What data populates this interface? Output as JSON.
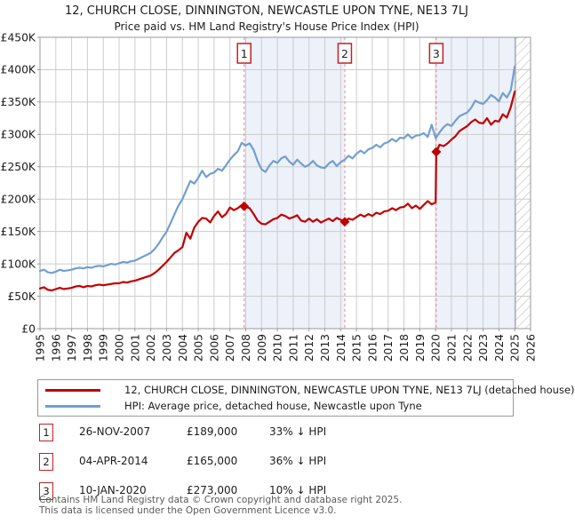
{
  "title": "12, CHURCH CLOSE, DINNINGTON, NEWCASTLE UPON TYNE, NE13 7LJ",
  "subtitle": "Price paid vs. HM Land Registry's House Price Index (HPI)",
  "legend": {
    "items": [
      {
        "label": "12, CHURCH CLOSE, DINNINGTON, NEWCASTLE UPON TYNE, NE13 7LJ (detached house)",
        "color": "#c00000"
      },
      {
        "label": "HPI: Average price, detached house, Newcastle upon Tyne",
        "color": "#719fd0"
      }
    ]
  },
  "table": {
    "rows": [
      {
        "num": "1",
        "date": "26-NOV-2007",
        "price": "£189,000",
        "hpi": "33% ↓ HPI"
      },
      {
        "num": "2",
        "date": "04-APR-2014",
        "price": "£165,000",
        "hpi": "36% ↓ HPI"
      },
      {
        "num": "3",
        "date": "10-JAN-2020",
        "price": "£273,000",
        "hpi": "10% ↓ HPI"
      }
    ]
  },
  "footer": {
    "line1": "Contains HM Land Registry data © Crown copyright and database right 2025.",
    "line2": "This data is licensed under the Open Government Licence v3.0."
  },
  "chart_data": {
    "type": "line",
    "title": "12, CHURCH CLOSE, DINNINGTON, NEWCASTLE UPON TYNE, NE13 7LJ",
    "unit": "GBP thousands",
    "x_axis": {
      "range": [
        1995,
        2026
      ],
      "ticks": [
        1995,
        1996,
        1997,
        1998,
        1999,
        2000,
        2001,
        2002,
        2003,
        2004,
        2005,
        2006,
        2007,
        2008,
        2009,
        2010,
        2011,
        2012,
        2013,
        2014,
        2015,
        2016,
        2017,
        2018,
        2019,
        2020,
        2021,
        2022,
        2023,
        2024,
        2025,
        2026
      ]
    },
    "y_axis": {
      "range": [
        0,
        450
      ],
      "ticks": [
        {
          "v": 0,
          "label": "£0"
        },
        {
          "v": 50,
          "label": "£50K"
        },
        {
          "v": 100,
          "label": "£100K"
        },
        {
          "v": 150,
          "label": "£150K"
        },
        {
          "v": 200,
          "label": "£200K"
        },
        {
          "v": 250,
          "label": "£250K"
        },
        {
          "v": 300,
          "label": "£300K"
        },
        {
          "v": 350,
          "label": "£350K"
        },
        {
          "v": 400,
          "label": "£400K"
        },
        {
          "v": 450,
          "label": "£450K"
        }
      ]
    },
    "colors": {
      "price_line": "#c00000",
      "hpi_line": "#719fd0",
      "band": "#edf1fa",
      "sale_dash": "#ef8b8b",
      "flag_border": "#c32222",
      "grid": "#cccccc",
      "border": "#999999",
      "hatch_line": "#b9b9b9"
    },
    "shaded_periods": [
      [
        2007.9,
        2014.26
      ],
      [
        2020.04,
        2025.03
      ]
    ],
    "hatch_period": [
      2025.03,
      2026
    ],
    "sales": [
      {
        "n": "1",
        "x": 2007.9,
        "y": 189,
        "date": "26-NOV-2007",
        "price": 189000
      },
      {
        "n": "2",
        "x": 2014.26,
        "y": 165,
        "date": "04-APR-2014",
        "price": 165000
      },
      {
        "n": "3",
        "x": 2020.04,
        "y": 273,
        "date": "10-JAN-2020",
        "price": 273000
      }
    ],
    "series": [
      {
        "name": "HPI: Average price, detached house, Newcastle upon Tyne",
        "color": "#719fd0",
        "points": [
          [
            1995.0,
            89
          ],
          [
            1995.25,
            91
          ],
          [
            1995.5,
            87
          ],
          [
            1995.75,
            86
          ],
          [
            1996.0,
            88
          ],
          [
            1996.25,
            91
          ],
          [
            1996.5,
            89
          ],
          [
            1996.75,
            90
          ],
          [
            1997.0,
            91
          ],
          [
            1997.25,
            93
          ],
          [
            1997.5,
            94
          ],
          [
            1997.75,
            93
          ],
          [
            1998.0,
            95
          ],
          [
            1998.25,
            94
          ],
          [
            1998.5,
            96
          ],
          [
            1998.75,
            97
          ],
          [
            1999.0,
            96
          ],
          [
            1999.25,
            98
          ],
          [
            1999.5,
            100
          ],
          [
            1999.75,
            99
          ],
          [
            2000.0,
            101
          ],
          [
            2000.25,
            103
          ],
          [
            2000.5,
            102
          ],
          [
            2000.75,
            104
          ],
          [
            2001.0,
            105
          ],
          [
            2001.25,
            108
          ],
          [
            2001.5,
            111
          ],
          [
            2001.75,
            114
          ],
          [
            2002.0,
            117
          ],
          [
            2002.25,
            123
          ],
          [
            2002.5,
            131
          ],
          [
            2002.75,
            141
          ],
          [
            2003.0,
            150
          ],
          [
            2003.25,
            163
          ],
          [
            2003.5,
            177
          ],
          [
            2003.75,
            190
          ],
          [
            2004.0,
            200
          ],
          [
            2004.25,
            214
          ],
          [
            2004.5,
            228
          ],
          [
            2004.75,
            224
          ],
          [
            2005.0,
            233
          ],
          [
            2005.25,
            244
          ],
          [
            2005.5,
            234
          ],
          [
            2005.75,
            239
          ],
          [
            2006.0,
            241
          ],
          [
            2006.25,
            247
          ],
          [
            2006.5,
            244
          ],
          [
            2006.75,
            252
          ],
          [
            2007.0,
            261
          ],
          [
            2007.25,
            268
          ],
          [
            2007.5,
            274
          ],
          [
            2007.75,
            287
          ],
          [
            2008.0,
            283
          ],
          [
            2008.25,
            286
          ],
          [
            2008.5,
            276
          ],
          [
            2008.75,
            259
          ],
          [
            2009.0,
            246
          ],
          [
            2009.25,
            242
          ],
          [
            2009.5,
            252
          ],
          [
            2009.75,
            259
          ],
          [
            2010.0,
            256
          ],
          [
            2010.25,
            263
          ],
          [
            2010.5,
            266
          ],
          [
            2010.75,
            258
          ],
          [
            2011.0,
            253
          ],
          [
            2011.25,
            261
          ],
          [
            2011.5,
            255
          ],
          [
            2011.75,
            250
          ],
          [
            2012.0,
            253
          ],
          [
            2012.25,
            259
          ],
          [
            2012.5,
            252
          ],
          [
            2012.75,
            249
          ],
          [
            2013.0,
            248
          ],
          [
            2013.25,
            255
          ],
          [
            2013.5,
            259
          ],
          [
            2013.75,
            251
          ],
          [
            2014.0,
            257
          ],
          [
            2014.25,
            261
          ],
          [
            2014.5,
            267
          ],
          [
            2014.75,
            263
          ],
          [
            2015.0,
            270
          ],
          [
            2015.25,
            275
          ],
          [
            2015.5,
            271
          ],
          [
            2015.75,
            277
          ],
          [
            2016.0,
            279
          ],
          [
            2016.25,
            284
          ],
          [
            2016.5,
            280
          ],
          [
            2016.75,
            286
          ],
          [
            2017.0,
            288
          ],
          [
            2017.25,
            293
          ],
          [
            2017.5,
            289
          ],
          [
            2017.75,
            295
          ],
          [
            2018.0,
            294
          ],
          [
            2018.25,
            300
          ],
          [
            2018.5,
            294
          ],
          [
            2018.75,
            298
          ],
          [
            2019.0,
            299
          ],
          [
            2019.25,
            302
          ],
          [
            2019.5,
            296
          ],
          [
            2019.75,
            315
          ],
          [
            2020.0,
            294
          ],
          [
            2020.25,
            303
          ],
          [
            2020.5,
            311
          ],
          [
            2020.75,
            316
          ],
          [
            2021.0,
            313
          ],
          [
            2021.25,
            321
          ],
          [
            2021.5,
            328
          ],
          [
            2021.75,
            331
          ],
          [
            2022.0,
            334
          ],
          [
            2022.25,
            341
          ],
          [
            2022.5,
            352
          ],
          [
            2022.75,
            349
          ],
          [
            2023.0,
            347
          ],
          [
            2023.25,
            353
          ],
          [
            2023.5,
            361
          ],
          [
            2023.75,
            357
          ],
          [
            2024.0,
            351
          ],
          [
            2024.25,
            364
          ],
          [
            2024.5,
            357
          ],
          [
            2024.75,
            368
          ],
          [
            2025.0,
            405
          ]
        ]
      },
      {
        "name": "12, CHURCH CLOSE, DINNINGTON, NEWCASTLE UPON TYNE, NE13 7LJ (detached house)",
        "color": "#c00000",
        "points": [
          [
            1995.0,
            62
          ],
          [
            1995.25,
            64
          ],
          [
            1995.5,
            60
          ],
          [
            1995.75,
            59
          ],
          [
            1996.0,
            61
          ],
          [
            1996.25,
            63
          ],
          [
            1996.5,
            61
          ],
          [
            1996.75,
            62
          ],
          [
            1997.0,
            63
          ],
          [
            1997.25,
            65
          ],
          [
            1997.5,
            66
          ],
          [
            1997.75,
            64
          ],
          [
            1998.0,
            66
          ],
          [
            1998.25,
            65
          ],
          [
            1998.5,
            67
          ],
          [
            1998.75,
            68
          ],
          [
            1999.0,
            67
          ],
          [
            1999.25,
            68
          ],
          [
            1999.5,
            69
          ],
          [
            1999.75,
            70
          ],
          [
            2000.0,
            70
          ],
          [
            2000.25,
            72
          ],
          [
            2000.5,
            71
          ],
          [
            2000.75,
            73
          ],
          [
            2001.0,
            74
          ],
          [
            2001.25,
            76
          ],
          [
            2001.5,
            78
          ],
          [
            2001.75,
            80
          ],
          [
            2002.0,
            82
          ],
          [
            2002.25,
            86
          ],
          [
            2002.5,
            91
          ],
          [
            2002.75,
            97
          ],
          [
            2003.0,
            103
          ],
          [
            2003.25,
            110
          ],
          [
            2003.5,
            117
          ],
          [
            2003.75,
            121
          ],
          [
            2004.0,
            126
          ],
          [
            2004.25,
            148
          ],
          [
            2004.5,
            139
          ],
          [
            2004.75,
            156
          ],
          [
            2005.0,
            165
          ],
          [
            2005.25,
            171
          ],
          [
            2005.5,
            170
          ],
          [
            2005.75,
            164
          ],
          [
            2006.0,
            174
          ],
          [
            2006.25,
            181
          ],
          [
            2006.5,
            172
          ],
          [
            2006.75,
            177
          ],
          [
            2007.0,
            187
          ],
          [
            2007.25,
            183
          ],
          [
            2007.5,
            186
          ],
          [
            2007.75,
            191
          ],
          [
            2007.9,
            189
          ],
          [
            2008.0,
            188
          ],
          [
            2008.25,
            186
          ],
          [
            2008.5,
            177
          ],
          [
            2008.75,
            167
          ],
          [
            2009.0,
            162
          ],
          [
            2009.25,
            161
          ],
          [
            2009.5,
            165
          ],
          [
            2009.75,
            169
          ],
          [
            2010.0,
            171
          ],
          [
            2010.25,
            176
          ],
          [
            2010.5,
            174
          ],
          [
            2010.75,
            170
          ],
          [
            2011.0,
            172
          ],
          [
            2011.25,
            175
          ],
          [
            2011.5,
            167
          ],
          [
            2011.75,
            165
          ],
          [
            2012.0,
            170
          ],
          [
            2012.25,
            165
          ],
          [
            2012.5,
            169
          ],
          [
            2012.75,
            164
          ],
          [
            2013.0,
            167
          ],
          [
            2013.25,
            170
          ],
          [
            2013.5,
            166
          ],
          [
            2013.75,
            171
          ],
          [
            2014.0,
            168
          ],
          [
            2014.26,
            165
          ],
          [
            2014.5,
            170
          ],
          [
            2014.75,
            168
          ],
          [
            2015.0,
            172
          ],
          [
            2015.25,
            176
          ],
          [
            2015.5,
            173
          ],
          [
            2015.75,
            177
          ],
          [
            2016.0,
            174
          ],
          [
            2016.25,
            179
          ],
          [
            2016.5,
            177
          ],
          [
            2016.75,
            181
          ],
          [
            2017.0,
            182
          ],
          [
            2017.25,
            186
          ],
          [
            2017.5,
            183
          ],
          [
            2017.75,
            187
          ],
          [
            2018.0,
            188
          ],
          [
            2018.25,
            193
          ],
          [
            2018.5,
            186
          ],
          [
            2018.75,
            190
          ],
          [
            2019.0,
            185
          ],
          [
            2019.25,
            191
          ],
          [
            2019.5,
            197
          ],
          [
            2019.75,
            192
          ],
          [
            2020.0,
            195
          ],
          [
            2020.04,
            273
          ],
          [
            2020.25,
            284
          ],
          [
            2020.5,
            282
          ],
          [
            2020.75,
            286
          ],
          [
            2021.0,
            292
          ],
          [
            2021.25,
            297
          ],
          [
            2021.5,
            305
          ],
          [
            2021.75,
            309
          ],
          [
            2022.0,
            313
          ],
          [
            2022.25,
            319
          ],
          [
            2022.5,
            323
          ],
          [
            2022.75,
            318
          ],
          [
            2023.0,
            317
          ],
          [
            2023.25,
            325
          ],
          [
            2023.5,
            315
          ],
          [
            2023.75,
            321
          ],
          [
            2024.0,
            320
          ],
          [
            2024.25,
            331
          ],
          [
            2024.5,
            326
          ],
          [
            2024.75,
            342
          ],
          [
            2025.0,
            366
          ]
        ]
      }
    ],
    "legend_position": "bottom",
    "grid": true
  }
}
